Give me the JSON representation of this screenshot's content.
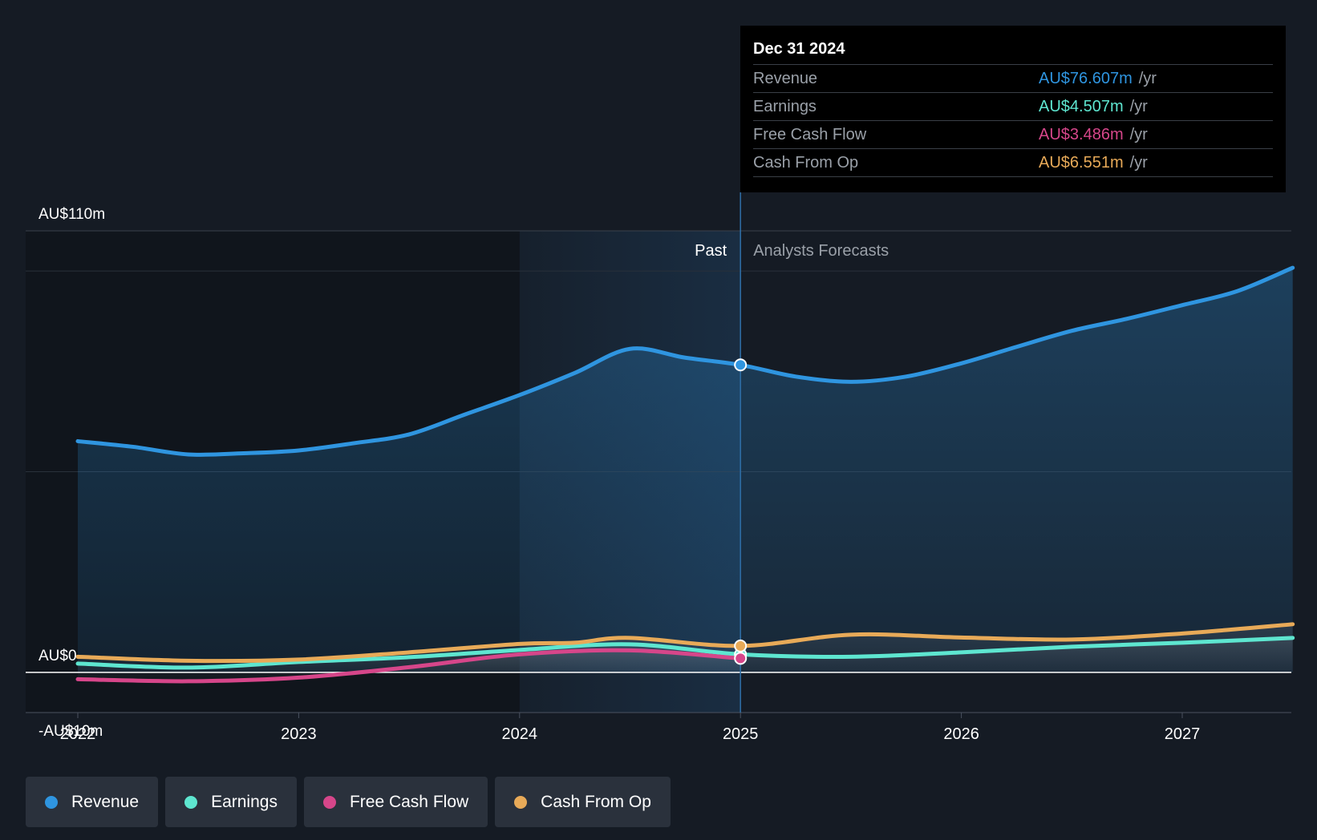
{
  "chart_data": {
    "type": "line",
    "x_unit": "year",
    "xlim": [
      2021.76,
      2027.5
    ],
    "ylim": [
      -10,
      110
    ],
    "y_axis_labels": [
      {
        "value": 110,
        "text": "AU$110m"
      },
      {
        "value": 0,
        "text": "AU$0"
      },
      {
        "value": -10,
        "text": "-AU$10m"
      }
    ],
    "gridlines": [
      100,
      50
    ],
    "x_ticks": [
      {
        "value": 2022,
        "text": "2022"
      },
      {
        "value": 2023,
        "text": "2023"
      },
      {
        "value": 2024,
        "text": "2024"
      },
      {
        "value": 2025,
        "text": "2025"
      },
      {
        "value": 2026,
        "text": "2026"
      },
      {
        "value": 2027,
        "text": "2027"
      }
    ],
    "past_region": {
      "start": 2024.0,
      "end": 2025.0,
      "label": "Past"
    },
    "forecast_label": "Analysts Forecasts",
    "divider_x": 2025.0,
    "series": [
      {
        "name": "Revenue",
        "color": "#2f95e0",
        "fill": true,
        "points": [
          [
            2022.0,
            57.6
          ],
          [
            2022.25,
            56.2
          ],
          [
            2022.5,
            54.3
          ],
          [
            2022.75,
            54.6
          ],
          [
            2023.0,
            55.3
          ],
          [
            2023.25,
            57.1
          ],
          [
            2023.5,
            59.3
          ],
          [
            2023.75,
            64.2
          ],
          [
            2024.0,
            69.1
          ],
          [
            2024.25,
            74.6
          ],
          [
            2024.5,
            80.6
          ],
          [
            2024.75,
            78.4
          ],
          [
            2025.0,
            76.6
          ],
          [
            2025.25,
            73.7
          ],
          [
            2025.5,
            72.4
          ],
          [
            2025.75,
            73.7
          ],
          [
            2026.0,
            77.0
          ],
          [
            2026.25,
            81.1
          ],
          [
            2026.5,
            85.1
          ],
          [
            2026.75,
            88.1
          ],
          [
            2027.0,
            91.5
          ],
          [
            2027.25,
            95.0
          ],
          [
            2027.5,
            100.8
          ]
        ]
      },
      {
        "name": "Earnings",
        "color": "#5ee6d0",
        "fill": false,
        "points": [
          [
            2022.0,
            2.2
          ],
          [
            2022.5,
            1.2
          ],
          [
            2023.0,
            2.6
          ],
          [
            2023.5,
            3.8
          ],
          [
            2024.0,
            5.6
          ],
          [
            2024.5,
            7.0
          ],
          [
            2025.0,
            4.5
          ],
          [
            2025.5,
            3.9
          ],
          [
            2026.0,
            5.0
          ],
          [
            2026.5,
            6.4
          ],
          [
            2027.0,
            7.4
          ],
          [
            2027.5,
            8.6
          ]
        ]
      },
      {
        "name": "Free Cash Flow",
        "color": "#d6468a",
        "fill": false,
        "points": [
          [
            2022.0,
            -1.7
          ],
          [
            2022.5,
            -2.2
          ],
          [
            2023.0,
            -1.3
          ],
          [
            2023.5,
            1.3
          ],
          [
            2024.0,
            4.5
          ],
          [
            2024.5,
            5.5
          ],
          [
            2025.0,
            3.5
          ]
        ]
      },
      {
        "name": "Cash From Op",
        "color": "#e8aa58",
        "fill": false,
        "points": [
          [
            2022.0,
            3.9
          ],
          [
            2022.5,
            2.9
          ],
          [
            2023.0,
            3.2
          ],
          [
            2023.5,
            5.0
          ],
          [
            2024.0,
            7.1
          ],
          [
            2024.25,
            7.4
          ],
          [
            2024.5,
            8.6
          ],
          [
            2025.0,
            6.6
          ],
          [
            2025.5,
            9.4
          ],
          [
            2026.0,
            8.7
          ],
          [
            2026.5,
            8.2
          ],
          [
            2027.0,
            9.7
          ],
          [
            2027.5,
            12.0
          ]
        ]
      }
    ],
    "highlight_x": 2025.0
  },
  "tooltip": {
    "date": "Dec 31 2024",
    "rows": [
      {
        "name": "Revenue",
        "value": "AU$76.607m",
        "unit": "/yr",
        "color": "#2f95e0"
      },
      {
        "name": "Earnings",
        "value": "AU$4.507m",
        "unit": "/yr",
        "color": "#5ee6d0"
      },
      {
        "name": "Free Cash Flow",
        "value": "AU$3.486m",
        "unit": "/yr",
        "color": "#d6468a"
      },
      {
        "name": "Cash From Op",
        "value": "AU$6.551m",
        "unit": "/yr",
        "color": "#e8aa58"
      }
    ]
  },
  "legend": [
    {
      "label": "Revenue",
      "color": "#2f95e0"
    },
    {
      "label": "Earnings",
      "color": "#5ee6d0"
    },
    {
      "label": "Free Cash Flow",
      "color": "#d6468a"
    },
    {
      "label": "Cash From Op",
      "color": "#e8aa58"
    }
  ]
}
